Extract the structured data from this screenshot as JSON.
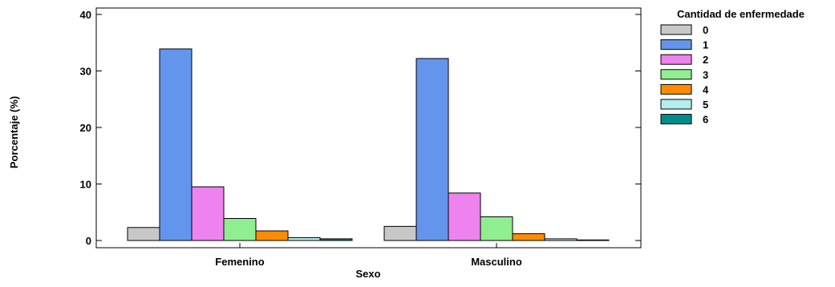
{
  "chart_data": {
    "type": "bar",
    "xlabel": "Sexo",
    "ylabel": "Porcentaje (%)",
    "ylim": [
      0,
      40
    ],
    "yticks": [
      0,
      10,
      20,
      30,
      40
    ],
    "grid": false,
    "legend_position": "right",
    "legend_title": "Cantidad de enfermedade",
    "categories": [
      "Femenino",
      "Masculino"
    ],
    "series": [
      {
        "name": "0",
        "color": "#c8c8c8",
        "values": [
          2.3,
          2.5
        ]
      },
      {
        "name": "1",
        "color": "#6495ed",
        "values": [
          33.9,
          32.2
        ]
      },
      {
        "name": "2",
        "color": "#ee82ee",
        "values": [
          9.5,
          8.4
        ]
      },
      {
        "name": "3",
        "color": "#90ee90",
        "values": [
          3.9,
          4.2
        ]
      },
      {
        "name": "4",
        "color": "#ff8c00",
        "values": [
          1.7,
          1.2
        ]
      },
      {
        "name": "5",
        "color": "#b4eeee",
        "values": [
          0.5,
          0.3
        ]
      },
      {
        "name": "6",
        "color": "#008b8b",
        "values": [
          0.3,
          0.1
        ]
      }
    ]
  }
}
